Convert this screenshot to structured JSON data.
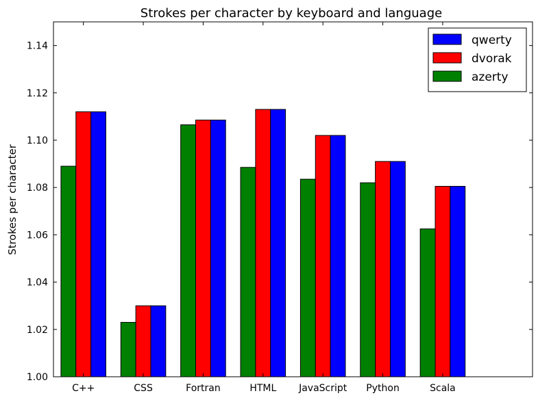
{
  "chart_data": {
    "type": "bar",
    "title": "Strokes per character by keyboard and language",
    "xlabel": "",
    "ylabel": "Strokes per character",
    "categories": [
      "C++",
      "CSS",
      "Fortran",
      "HTML",
      "JavaScript",
      "Python",
      "Scala"
    ],
    "ylim": [
      1.0,
      1.15
    ],
    "yticks": [
      "1.00",
      "1.02",
      "1.04",
      "1.06",
      "1.08",
      "1.10",
      "1.12",
      "1.14"
    ],
    "grid": false,
    "legend_position": "top-right",
    "series": [
      {
        "name": "azerty",
        "color": "#008000",
        "values": [
          1.089,
          1.023,
          1.1065,
          1.0885,
          1.0835,
          1.082,
          1.0625
        ]
      },
      {
        "name": "dvorak",
        "color": "#ff0000",
        "values": [
          1.112,
          1.03,
          1.1085,
          1.113,
          1.102,
          1.091,
          1.0805
        ]
      },
      {
        "name": "qwerty",
        "color": "#0000ff",
        "values": [
          1.112,
          1.03,
          1.1085,
          1.113,
          1.102,
          1.091,
          1.0805
        ]
      }
    ],
    "legend_order": [
      "qwerty",
      "dvorak",
      "azerty"
    ]
  }
}
